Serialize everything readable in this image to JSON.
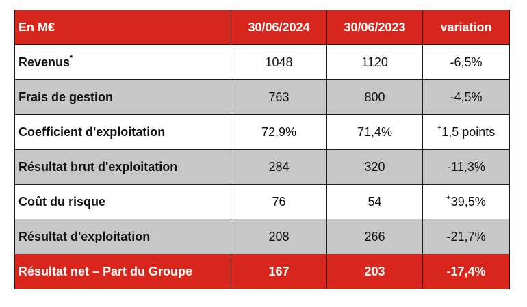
{
  "header": {
    "label": "En M€",
    "col_2024": "30/06/2024",
    "col_2023": "30/06/2023",
    "col_variation": "variation"
  },
  "rows": [
    {
      "label": "Revenus",
      "note": "*",
      "v2024": "1048",
      "v2023": "1120",
      "variation": "-6,5%"
    },
    {
      "label": "Frais de gestion",
      "v2024": "763",
      "v2023": "800",
      "variation": "-4,5%"
    },
    {
      "label": "Coefficient d'exploitation",
      "v2024": "72,9%",
      "v2023": "71,4%",
      "variation_sign": "+",
      "variation": "1,5 points"
    },
    {
      "label": "Résultat brut d'exploitation",
      "v2024": "284",
      "v2023": "320",
      "variation": "-11,3%"
    },
    {
      "label": "Coût du risque",
      "v2024": "76",
      "v2023": "54",
      "variation_sign": "+",
      "variation": "39,5%"
    },
    {
      "label": "Résultat d'exploitation",
      "v2024": "208",
      "v2023": "266",
      "variation": "-21,7%"
    }
  ],
  "total": {
    "label": "Résultat net – Part du Groupe",
    "v2024": "167",
    "v2023": "203",
    "variation": "-17,4%"
  },
  "colors": {
    "header_bg": "#d8261c",
    "row_grey": "#c7c7c7",
    "row_white": "#ffffff"
  }
}
